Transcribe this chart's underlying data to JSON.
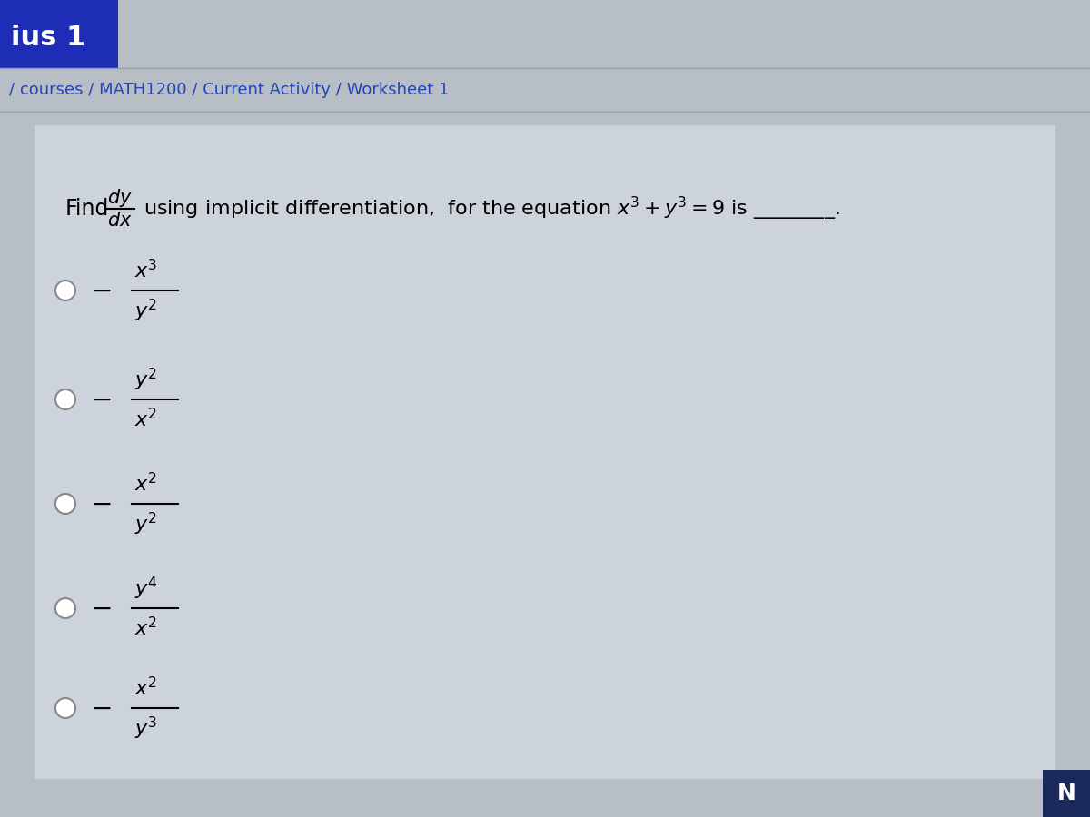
{
  "bg_color": "#b8bec6",
  "header_bg": "#2233aa",
  "header_text": "ius 1",
  "breadcrumb": "/ courses / MATH1200 / Current Activity / Worksheet 1",
  "breadcrumb_color": "#2244bb",
  "content_bg": "#c8ced6",
  "next_btn_color": "#1a2a5a",
  "next_btn_text": "N",
  "option_data": [
    [
      "x^3",
      "y^2"
    ],
    [
      "y^2",
      "x^2"
    ],
    [
      "x^2",
      "y^2"
    ],
    [
      "y^4",
      "x^2"
    ],
    [
      "x^2",
      "y^3"
    ]
  ]
}
